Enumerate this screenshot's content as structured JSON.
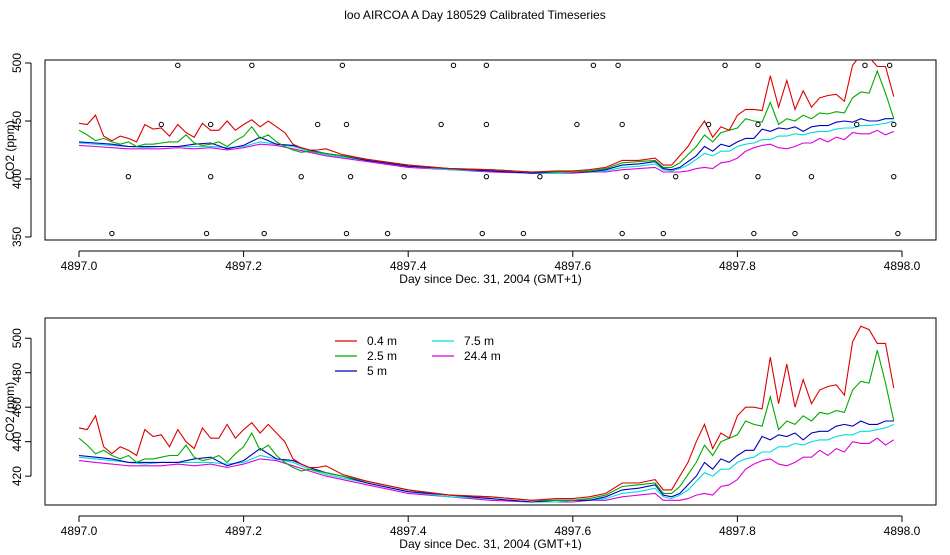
{
  "title": "loo AIRCOA A  Day 180529  Calibrated Timeseries",
  "colors": {
    "0.4 m": "#dd0000",
    "2.5 m": "#00aa00",
    "5 m": "#0000bb",
    "7.5 m": "#00dddd",
    "24.4 m": "#dd00dd",
    "points": "#000000"
  },
  "chart_data": [
    {
      "type": "line",
      "xlabel": "Day since Dec. 31, 2004 (GMT+1)",
      "ylabel": "CO2 (ppm)",
      "xlim": [
        4897.0,
        4898.0
      ],
      "ylim": [
        350,
        500
      ],
      "xticks": [
        "4897.0",
        "4897.2",
        "4897.4",
        "4897.6",
        "4897.8",
        "4898.0"
      ],
      "yticks": [
        "350",
        "400",
        "450",
        "500"
      ],
      "points": {
        "x": [
          4897.04,
          4897.06,
          4897.1,
          4897.12,
          4897.155,
          4897.16,
          4897.16,
          4897.21,
          4897.225,
          4897.27,
          4897.29,
          4897.32,
          4897.325,
          4897.325,
          4897.33,
          4897.375,
          4897.395,
          4897.44,
          4897.455,
          4897.49,
          4897.495,
          4897.495,
          4897.495,
          4897.54,
          4897.56,
          4897.605,
          4897.625,
          4897.655,
          4897.66,
          4897.66,
          4897.665,
          4897.71,
          4897.725,
          4897.765,
          4897.785,
          4897.82,
          4897.825,
          4897.825,
          4897.825,
          4897.87,
          4897.89,
          4897.945,
          4897.955,
          4897.985,
          4897.99,
          4897.99,
          4897.995
        ],
        "y": [
          353,
          402,
          447,
          498,
          353,
          402,
          447,
          498,
          353,
          402,
          447,
          498,
          447,
          353,
          402,
          353,
          402,
          447,
          498,
          353,
          402,
          447,
          498,
          353,
          402,
          447,
          498,
          498,
          447,
          353,
          402,
          353,
          402,
          447,
          498,
          353,
          402,
          447,
          498,
          353,
          402,
          447,
          498,
          498,
          447,
          402,
          353
        ]
      },
      "series": [
        {
          "name": "0.4 m",
          "x": [
            4897.0,
            4897.01,
            4897.02,
            4897.03,
            4897.04,
            4897.05,
            4897.06,
            4897.07,
            4897.08,
            4897.09,
            4897.1,
            4897.11,
            4897.12,
            4897.13,
            4897.14,
            4897.15,
            4897.16,
            4897.17,
            4897.18,
            4897.19,
            4897.2,
            4897.21,
            4897.22,
            4897.23,
            4897.24,
            4897.25,
            4897.26,
            4897.27,
            4897.28,
            4897.29,
            4897.3,
            4897.32,
            4897.35,
            4897.4,
            4897.45,
            4897.5,
            4897.55,
            4897.58,
            4897.6,
            4897.62,
            4897.64,
            4897.66,
            4897.68,
            4897.7,
            4897.71,
            4897.72,
            4897.73,
            4897.74,
            4897.75,
            4897.76,
            4897.77,
            4897.78,
            4897.79,
            4897.8,
            4897.81,
            4897.82,
            4897.83,
            4897.84,
            4897.85,
            4897.86,
            4897.87,
            4897.88,
            4897.89,
            4897.9,
            4897.91,
            4897.92,
            4897.93,
            4897.94,
            4897.95,
            4897.96,
            4897.97,
            4897.98,
            4897.99
          ],
          "y": [
            448,
            447,
            455,
            437,
            433,
            437,
            435,
            432,
            447,
            443,
            444,
            437,
            447,
            440,
            436,
            448,
            442,
            442,
            450,
            442,
            447,
            451,
            445,
            450,
            445,
            440,
            430,
            427,
            425,
            425,
            426,
            421,
            417,
            412,
            409,
            408,
            406,
            407,
            407,
            408,
            410,
            416,
            416,
            418,
            412,
            412,
            420,
            428,
            440,
            450,
            436,
            445,
            442,
            455,
            460,
            460,
            459,
            489,
            462,
            485,
            460,
            476,
            462,
            470,
            472,
            473,
            467,
            498,
            507,
            505,
            497,
            497,
            471
          ]
        },
        {
          "name": "2.5 m",
          "x": [
            4897.0,
            4897.01,
            4897.02,
            4897.03,
            4897.04,
            4897.05,
            4897.06,
            4897.07,
            4897.08,
            4897.09,
            4897.1,
            4897.11,
            4897.12,
            4897.13,
            4897.14,
            4897.15,
            4897.16,
            4897.17,
            4897.18,
            4897.19,
            4897.2,
            4897.21,
            4897.22,
            4897.23,
            4897.24,
            4897.25,
            4897.26,
            4897.27,
            4897.28,
            4897.29,
            4897.3,
            4897.32,
            4897.35,
            4897.4,
            4897.45,
            4897.5,
            4897.55,
            4897.58,
            4897.6,
            4897.62,
            4897.64,
            4897.66,
            4897.68,
            4897.7,
            4897.71,
            4897.72,
            4897.73,
            4897.74,
            4897.75,
            4897.76,
            4897.77,
            4897.78,
            4897.79,
            4897.8,
            4897.81,
            4897.82,
            4897.83,
            4897.84,
            4897.85,
            4897.86,
            4897.87,
            4897.88,
            4897.89,
            4897.9,
            4897.91,
            4897.92,
            4897.93,
            4897.94,
            4897.95,
            4897.96,
            4897.97,
            4897.98,
            4897.99
          ],
          "y": [
            442,
            438,
            433,
            435,
            432,
            430,
            432,
            428,
            430,
            430,
            431,
            432,
            432,
            438,
            431,
            429,
            430,
            432,
            428,
            433,
            437,
            445,
            435,
            438,
            432,
            428,
            425,
            423,
            424,
            423,
            422,
            420,
            417,
            412,
            409,
            408,
            406,
            406,
            406,
            407,
            409,
            414,
            415,
            416,
            410,
            410,
            414,
            421,
            428,
            438,
            432,
            440,
            442,
            444,
            452,
            450,
            449,
            466,
            447,
            452,
            450,
            455,
            452,
            457,
            456,
            458,
            457,
            470,
            475,
            474,
            493,
            474,
            452
          ]
        },
        {
          "name": "5 m",
          "x": [
            4897.0,
            4897.02,
            4897.04,
            4897.06,
            4897.08,
            4897.1,
            4897.12,
            4897.14,
            4897.16,
            4897.18,
            4897.2,
            4897.22,
            4897.24,
            4897.26,
            4897.28,
            4897.3,
            4897.32,
            4897.35,
            4897.4,
            4897.45,
            4897.5,
            4897.55,
            4897.58,
            4897.6,
            4897.62,
            4897.64,
            4897.66,
            4897.68,
            4897.7,
            4897.71,
            4897.72,
            4897.73,
            4897.74,
            4897.75,
            4897.76,
            4897.77,
            4897.78,
            4897.79,
            4897.8,
            4897.81,
            4897.82,
            4897.83,
            4897.84,
            4897.85,
            4897.86,
            4897.87,
            4897.88,
            4897.89,
            4897.9,
            4897.91,
            4897.92,
            4897.93,
            4897.94,
            4897.95,
            4897.96,
            4897.97,
            4897.98,
            4897.99
          ],
          "y": [
            432,
            431,
            430,
            428,
            428,
            428,
            428,
            430,
            431,
            426,
            429,
            436,
            430,
            429,
            425,
            422,
            420,
            416,
            411,
            409,
            407,
            405,
            406,
            406,
            406,
            408,
            412,
            413,
            415,
            409,
            408,
            410,
            415,
            420,
            428,
            424,
            430,
            428,
            432,
            435,
            435,
            443,
            441,
            444,
            443,
            445,
            441,
            445,
            446,
            446,
            449,
            450,
            449,
            452,
            450,
            450,
            452,
            452
          ]
        },
        {
          "name": "7.5 m",
          "x": [
            4897.0,
            4897.02,
            4897.04,
            4897.06,
            4897.08,
            4897.1,
            4897.12,
            4897.14,
            4897.16,
            4897.18,
            4897.2,
            4897.22,
            4897.24,
            4897.26,
            4897.28,
            4897.3,
            4897.32,
            4897.35,
            4897.4,
            4897.45,
            4897.5,
            4897.55,
            4897.58,
            4897.6,
            4897.62,
            4897.64,
            4897.66,
            4897.68,
            4897.7,
            4897.71,
            4897.72,
            4897.73,
            4897.74,
            4897.75,
            4897.76,
            4897.77,
            4897.78,
            4897.79,
            4897.8,
            4897.81,
            4897.82,
            4897.83,
            4897.84,
            4897.85,
            4897.86,
            4897.87,
            4897.88,
            4897.89,
            4897.9,
            4897.91,
            4897.92,
            4897.93,
            4897.94,
            4897.95,
            4897.96,
            4897.97,
            4897.98,
            4897.99
          ],
          "y": [
            431,
            430,
            429,
            428,
            427,
            428,
            428,
            428,
            428,
            427,
            428,
            432,
            430,
            428,
            424,
            421,
            419,
            416,
            411,
            408,
            407,
            405,
            405,
            406,
            406,
            407,
            410,
            411,
            413,
            408,
            407,
            409,
            412,
            417,
            422,
            420,
            424,
            424,
            428,
            430,
            431,
            434,
            434,
            437,
            437,
            439,
            438,
            440,
            441,
            441,
            443,
            444,
            444,
            446,
            446,
            447,
            448,
            450
          ]
        },
        {
          "name": "24.4 m",
          "x": [
            4897.0,
            4897.02,
            4897.04,
            4897.06,
            4897.08,
            4897.1,
            4897.12,
            4897.14,
            4897.16,
            4897.18,
            4897.2,
            4897.22,
            4897.24,
            4897.26,
            4897.28,
            4897.3,
            4897.32,
            4897.35,
            4897.4,
            4897.45,
            4897.5,
            4897.55,
            4897.58,
            4897.6,
            4897.62,
            4897.64,
            4897.66,
            4897.68,
            4897.7,
            4897.71,
            4897.72,
            4897.73,
            4897.74,
            4897.75,
            4897.76,
            4897.77,
            4897.78,
            4897.79,
            4897.8,
            4897.81,
            4897.82,
            4897.83,
            4897.84,
            4897.85,
            4897.86,
            4897.87,
            4897.88,
            4897.89,
            4897.9,
            4897.91,
            4897.92,
            4897.93,
            4897.94,
            4897.95,
            4897.96,
            4897.97,
            4897.98,
            4897.99
          ],
          "y": [
            429,
            428,
            427,
            426,
            426,
            426,
            427,
            426,
            427,
            425,
            427,
            430,
            429,
            426,
            423,
            420,
            418,
            415,
            410,
            408,
            406,
            405,
            405,
            405,
            406,
            406,
            408,
            409,
            410,
            406,
            406,
            406,
            407,
            409,
            410,
            409,
            414,
            415,
            418,
            424,
            427,
            429,
            430,
            427,
            426,
            428,
            431,
            431,
            435,
            432,
            436,
            434,
            440,
            439,
            439,
            442,
            438,
            441
          ]
        }
      ]
    },
    {
      "type": "line",
      "xlabel": "Day since Dec. 31, 2004 (GMT+1)",
      "ylabel": "CO2 (ppm)",
      "xlim": [
        4897.0,
        4898.0
      ],
      "ylim": [
        405,
        510
      ],
      "xticks": [
        "4897.0",
        "4897.2",
        "4897.4",
        "4897.6",
        "4897.8",
        "4898.0"
      ],
      "yticks": [
        "420",
        "440",
        "460",
        "480",
        "500"
      ],
      "legend": {
        "placement": "top-center",
        "entries": [
          "0.4 m",
          "2.5 m",
          "5 m",
          "7.5 m",
          "24.4 m"
        ]
      },
      "series_same_as_top": true
    }
  ]
}
